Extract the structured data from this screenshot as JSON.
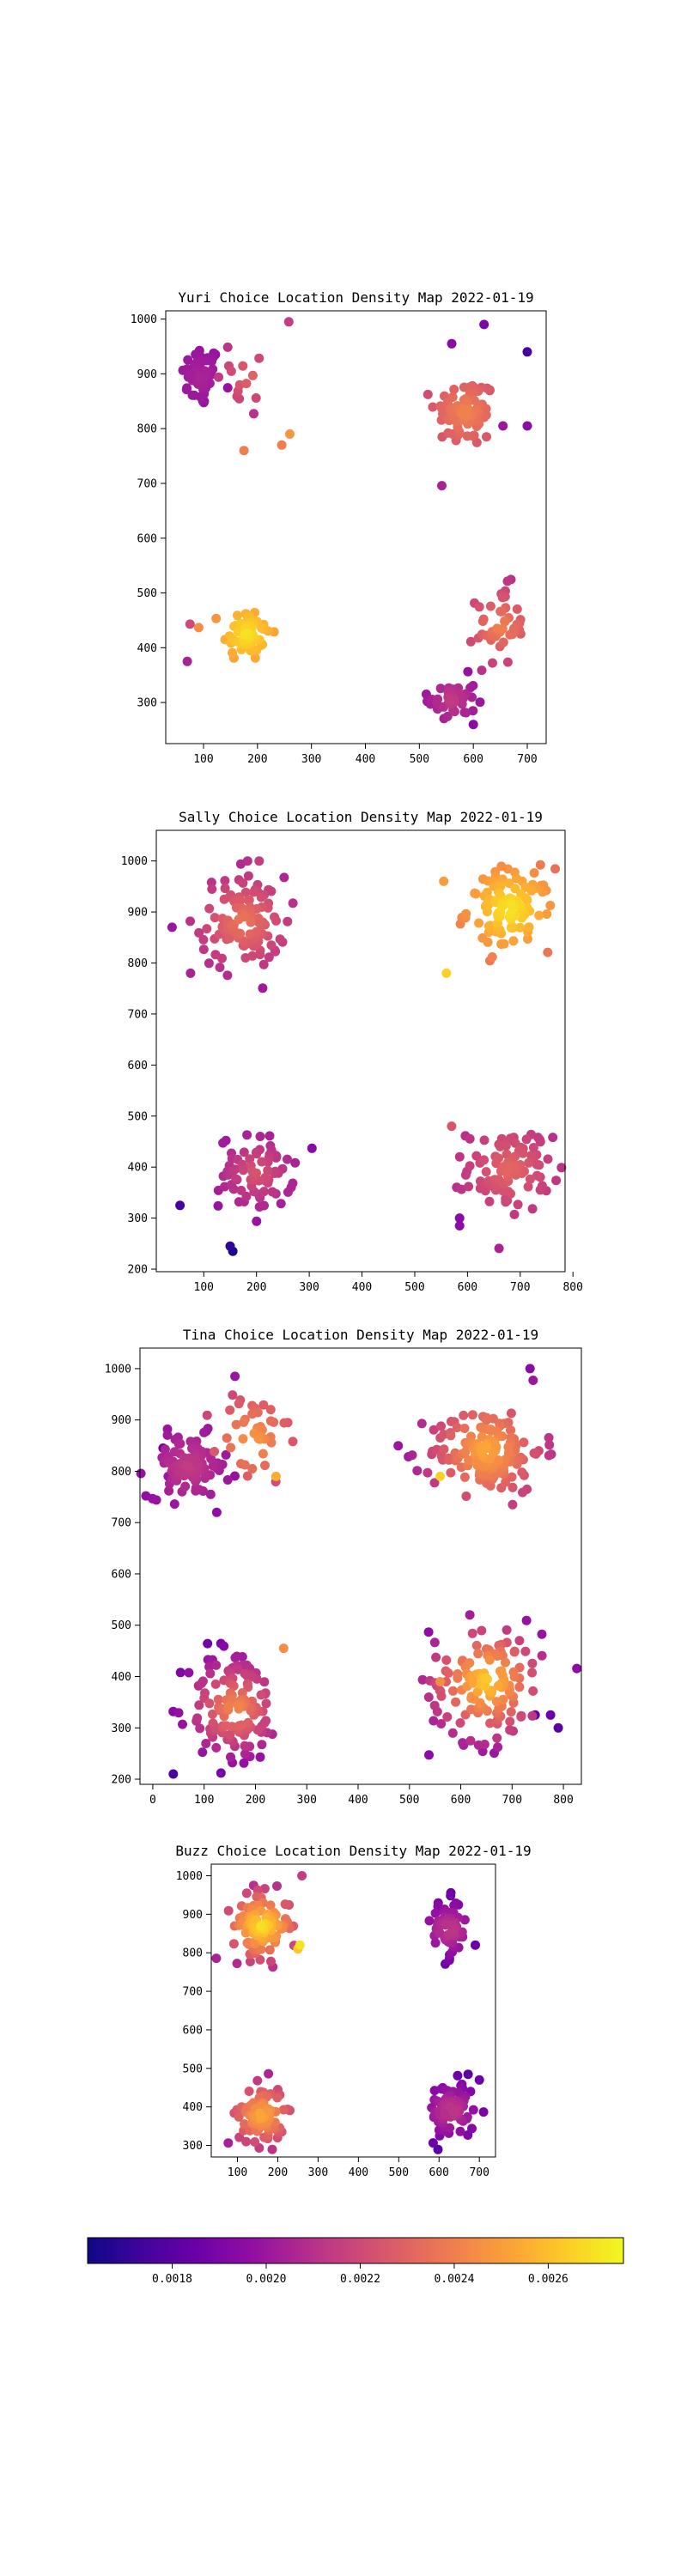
{
  "chart_data": [
    {
      "type": "scatter",
      "title": "Yuri Choice Location Density Map 2022-01-19",
      "xlabel": "",
      "ylabel": "",
      "xlim": [
        30,
        735
      ],
      "ylim": [
        225,
        1015
      ],
      "xticks": [
        100,
        200,
        300,
        400,
        500,
        600,
        700
      ],
      "yticks": [
        300,
        400,
        500,
        600,
        700,
        800,
        900,
        1000
      ],
      "clusters": [
        {
          "cx": 95,
          "cy": 895,
          "sx": 18,
          "sy": 28,
          "n": 50,
          "dmin": 0.0019,
          "dmax": 0.00205,
          "spread": 120
        },
        {
          "cx": 185,
          "cy": 895,
          "sx": 30,
          "sy": 40,
          "n": 14,
          "dmin": 0.00195,
          "dmax": 0.00232,
          "spread": 120
        },
        {
          "cx": 180,
          "cy": 425,
          "sx": 22,
          "sy": 25,
          "n": 60,
          "dmin": 0.00245,
          "dmax": 0.0027,
          "spread": 70
        },
        {
          "cx": 585,
          "cy": 830,
          "sx": 28,
          "sy": 32,
          "n": 80,
          "dmin": 0.00205,
          "dmax": 0.00242,
          "spread": 140
        },
        {
          "cx": 650,
          "cy": 440,
          "sx": 22,
          "sy": 35,
          "n": 45,
          "dmin": 0.0021,
          "dmax": 0.00242,
          "spread": 90
        },
        {
          "cx": 560,
          "cy": 305,
          "sx": 22,
          "sy": 22,
          "n": 40,
          "dmin": 0.00195,
          "dmax": 0.00215,
          "spread": 70
        }
      ],
      "outliers": [
        [
          70,
          375,
          0.00205
        ],
        [
          75,
          443,
          0.0022
        ],
        [
          258,
          995,
          0.00215
        ],
        [
          175,
          760,
          0.0024
        ],
        [
          245,
          770,
          0.0024
        ],
        [
          260,
          790,
          0.00248
        ],
        [
          620,
          990,
          0.0019
        ],
        [
          700,
          940,
          0.00175
        ],
        [
          700,
          805,
          0.00195
        ],
        [
          655,
          805,
          0.002
        ],
        [
          600,
          260,
          0.00195
        ],
        [
          560,
          955,
          0.00195
        ]
      ]
    },
    {
      "type": "scatter",
      "title": "Sally Choice Location Density Map 2022-01-19",
      "xlabel": "",
      "ylabel": "",
      "xlim": [
        10,
        785
      ],
      "ylim": [
        195,
        1060
      ],
      "xticks": [
        100,
        200,
        300,
        400,
        500,
        600,
        700,
        800
      ],
      "yticks": [
        200,
        300,
        400,
        500,
        600,
        700,
        800,
        900,
        1000
      ],
      "clusters": [
        {
          "cx": 175,
          "cy": 880,
          "sx": 40,
          "sy": 45,
          "n": 110,
          "dmin": 0.002,
          "dmax": 0.00238,
          "spread": 140
        },
        {
          "cx": 680,
          "cy": 905,
          "sx": 40,
          "sy": 40,
          "n": 110,
          "dmin": 0.00225,
          "dmax": 0.00272,
          "spread": 150
        },
        {
          "cx": 200,
          "cy": 390,
          "sx": 35,
          "sy": 35,
          "n": 80,
          "dmin": 0.0019,
          "dmax": 0.00225,
          "spread": 130
        },
        {
          "cx": 680,
          "cy": 395,
          "sx": 40,
          "sy": 40,
          "n": 100,
          "dmin": 0.00205,
          "dmax": 0.00232,
          "spread": 130
        }
      ],
      "outliers": [
        [
          55,
          325,
          0.00175
        ],
        [
          150,
          245,
          0.0017
        ],
        [
          155,
          235,
          0.00165
        ],
        [
          585,
          300,
          0.00195
        ],
        [
          585,
          285,
          0.00195
        ],
        [
          560,
          780,
          0.00265
        ],
        [
          555,
          960,
          0.0025
        ],
        [
          75,
          780,
          0.00205
        ],
        [
          40,
          870,
          0.002
        ],
        [
          205,
          1000,
          0.00215
        ],
        [
          183,
          1000,
          0.0021
        ],
        [
          570,
          480,
          0.00225
        ]
      ]
    },
    {
      "type": "scatter",
      "title": "Tina Choice Location Density Map 2022-01-19",
      "xlabel": "",
      "ylabel": "",
      "xlim": [
        -25,
        835
      ],
      "ylim": [
        190,
        1040
      ],
      "xticks": [
        0,
        100,
        200,
        300,
        400,
        500,
        600,
        700,
        800
      ],
      "yticks": [
        200,
        300,
        400,
        500,
        600,
        700,
        800,
        900,
        1000
      ],
      "clusters": [
        {
          "cx": 70,
          "cy": 810,
          "sx": 40,
          "sy": 30,
          "n": 100,
          "dmin": 0.00195,
          "dmax": 0.00215,
          "spread": 110
        },
        {
          "cx": 195,
          "cy": 860,
          "sx": 35,
          "sy": 50,
          "n": 40,
          "dmin": 0.0021,
          "dmax": 0.0025,
          "spread": 130
        },
        {
          "cx": 650,
          "cy": 840,
          "sx": 55,
          "sy": 40,
          "n": 160,
          "dmin": 0.002,
          "dmax": 0.00255,
          "spread": 160
        },
        {
          "cx": 160,
          "cy": 340,
          "sx": 45,
          "sy": 60,
          "n": 130,
          "dmin": 0.00185,
          "dmax": 0.00245,
          "spread": 140
        },
        {
          "cx": 650,
          "cy": 390,
          "sx": 55,
          "sy": 60,
          "n": 140,
          "dmin": 0.00195,
          "dmax": 0.00265,
          "spread": 150
        }
      ],
      "outliers": [
        [
          560,
          790,
          0.00265
        ],
        [
          790,
          300,
          0.0018
        ],
        [
          775,
          325,
          0.00185
        ],
        [
          745,
          325,
          0.0018
        ],
        [
          160,
          985,
          0.002
        ],
        [
          30,
          790,
          0.002
        ],
        [
          20,
          845,
          0.00185
        ],
        [
          735,
          1000,
          0.00195
        ],
        [
          255,
          455,
          0.00245
        ],
        [
          560,
          390,
          0.00245
        ],
        [
          240,
          790,
          0.00255
        ],
        [
          40,
          210,
          0.00175
        ]
      ]
    },
    {
      "type": "scatter",
      "title": "Buzz Choice Location Density Map 2022-01-19",
      "xlabel": "",
      "ylabel": "",
      "xlim": [
        35,
        740
      ],
      "ylim": [
        270,
        1030
      ],
      "xticks": [
        100,
        200,
        300,
        400,
        500,
        600,
        700
      ],
      "yticks": [
        300,
        400,
        500,
        600,
        700,
        800,
        900,
        1000
      ],
      "clusters": [
        {
          "cx": 160,
          "cy": 870,
          "sx": 35,
          "sy": 40,
          "n": 110,
          "dmin": 0.00205,
          "dmax": 0.0027,
          "spread": 120
        },
        {
          "cx": 625,
          "cy": 860,
          "sx": 22,
          "sy": 38,
          "n": 70,
          "dmin": 0.0018,
          "dmax": 0.00215,
          "spread": 110
        },
        {
          "cx": 160,
          "cy": 380,
          "sx": 28,
          "sy": 40,
          "n": 90,
          "dmin": 0.002,
          "dmax": 0.00255,
          "spread": 120
        },
        {
          "cx": 630,
          "cy": 390,
          "sx": 28,
          "sy": 38,
          "n": 90,
          "dmin": 0.0018,
          "dmax": 0.00215,
          "spread": 110
        }
      ],
      "outliers": [
        [
          260,
          1000,
          0.00215
        ],
        [
          745,
          860,
          0.0018
        ],
        [
          745,
          395,
          0.00175
        ],
        [
          255,
          820,
          0.0027
        ],
        [
          250,
          810,
          0.00262
        ],
        [
          140,
          975,
          0.0021
        ],
        [
          690,
          820,
          0.00185
        ],
        [
          700,
          470,
          0.00185
        ]
      ]
    }
  ],
  "colorbar": {
    "colormap": "plasma",
    "range": [
      0.00162,
      0.00276
    ],
    "ticks": [
      0.0018,
      0.002,
      0.0022,
      0.0024,
      0.0026
    ],
    "tick_labels": [
      "0.0018",
      "0.0020",
      "0.0022",
      "0.0024",
      "0.0026"
    ]
  }
}
